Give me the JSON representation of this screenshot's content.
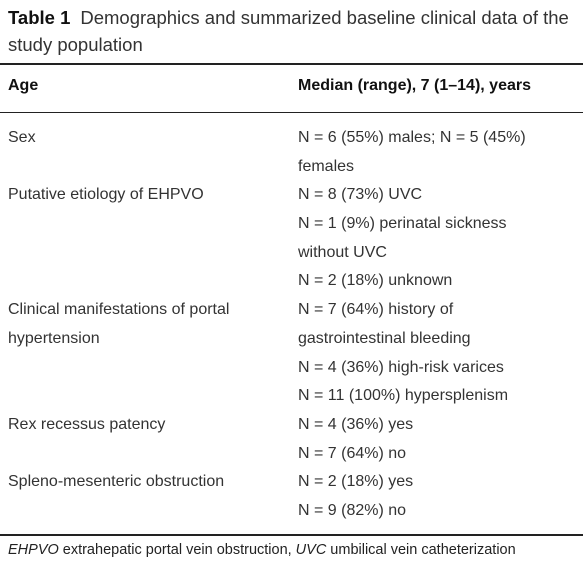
{
  "table_title": {
    "label": "Table 1",
    "text": "Demographics and summarized baseline clinical data of the study population"
  },
  "header": [
    "Age",
    "Median (range), 7 (1–14), years"
  ],
  "rows": [
    {
      "label": [
        "Sex"
      ],
      "value": [
        "N = 6 (55%) males; N = 5 (45%)",
        "females"
      ]
    },
    {
      "label": [
        "Putative etiology of EHPVO"
      ],
      "value": [
        "N = 8 (73%) UVC",
        "N = 1 (9%) perinatal sickness",
        "without UVC",
        "N = 2 (18%) unknown"
      ]
    },
    {
      "label": [
        "Clinical manifestations of portal",
        "hypertension"
      ],
      "value": [
        "N = 7 (64%) history of",
        "gastrointestinal bleeding",
        "N = 4 (36%) high-risk varices",
        "N = 11 (100%) hypersplenism"
      ]
    },
    {
      "label": [
        "Rex recessus patency"
      ],
      "value": [
        "N = 4 (36%) yes",
        "N = 7 (64%) no"
      ]
    },
    {
      "label": [
        "Spleno-mesenteric obstruction"
      ],
      "value": [
        "N = 2 (18%) yes",
        "N = 9 (82%) no"
      ]
    }
  ],
  "footnote": [
    {
      "abbr": "EHPVO",
      "text": "extrahepatic portal vein obstruction,"
    },
    {
      "abbr": "UVC",
      "text": "umbilical vein catheterization"
    }
  ]
}
